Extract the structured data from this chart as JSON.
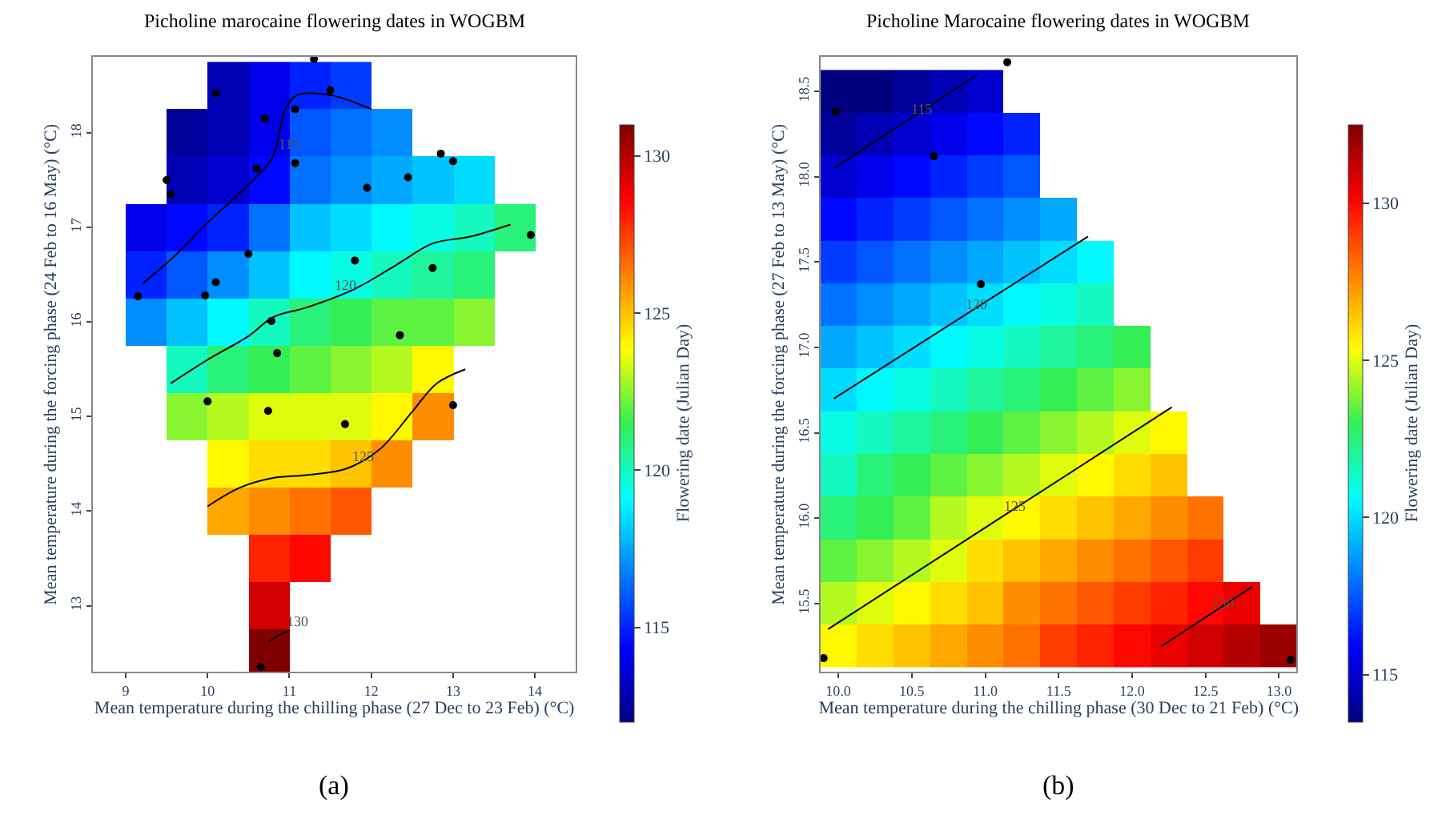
{
  "chart_data": [
    {
      "type": "heatmap",
      "title": "Picholine marocaine flowering dates in WOGBM",
      "xlabel": "Mean temperature during the chilling phase (27 Dec to 23 Feb) (°C)",
      "ylabel": "Mean temperature during the forcing phase (24 Feb to 16 May) (°C)",
      "clabel": "Flowering date (Julian Day)",
      "x": [
        9.25,
        9.75,
        10.25,
        10.75,
        11.25,
        11.75,
        12.25,
        12.75,
        13.25,
        13.75
      ],
      "y": [
        18.5,
        18.0,
        17.5,
        17.0,
        16.5,
        16.0,
        15.5,
        15.0,
        14.5,
        14.0,
        13.5,
        13.0,
        12.5
      ],
      "cells": [
        [
          null,
          null,
          113,
          114,
          115,
          115.5,
          null,
          null,
          null,
          null
        ],
        [
          null,
          112.5,
          113,
          114,
          116,
          116.5,
          117,
          null,
          null,
          null
        ],
        [
          null,
          113,
          113.5,
          114.5,
          116.5,
          117,
          117.5,
          118,
          118.5,
          null
        ],
        [
          114,
          114.5,
          115,
          116.5,
          118,
          118.5,
          119,
          119.5,
          120,
          121
        ],
        [
          115,
          116,
          117,
          118,
          119,
          119.5,
          120,
          120.5,
          121,
          null
        ],
        [
          117,
          118,
          119,
          120,
          121,
          121.5,
          122,
          122,
          122.5,
          null
        ],
        [
          null,
          120,
          121,
          121.5,
          122,
          122.5,
          123,
          124,
          null,
          null
        ],
        [
          null,
          122.5,
          123,
          123.5,
          123.5,
          123.5,
          124,
          126,
          null,
          null
        ],
        [
          null,
          null,
          124,
          124.5,
          124.5,
          125,
          126,
          null,
          null,
          null
        ],
        [
          null,
          null,
          125.5,
          126,
          126.5,
          127,
          null,
          null,
          null,
          null
        ],
        [
          null,
          null,
          null,
          128,
          128.5,
          null,
          null,
          null,
          null,
          null
        ],
        [
          null,
          null,
          null,
          129.5,
          null,
          null,
          null,
          null,
          null,
          null
        ],
        [
          null,
          null,
          null,
          131,
          null,
          null,
          null,
          null,
          null,
          null
        ]
      ],
      "clim": [
        112,
        131
      ],
      "cticks": [
        115,
        120,
        125,
        130
      ],
      "xlim": [
        8.6,
        14.5
      ],
      "xticks": [
        9,
        10,
        11,
        12,
        13,
        14
      ],
      "ylim": [
        12.3,
        18.8
      ],
      "yticks": [
        13,
        14,
        15,
        16,
        17,
        18
      ],
      "series": [
        {
          "type": "scatter",
          "color": "#000000",
          "marker": "circle",
          "x": [
            9.15,
            9.5,
            9.55,
            10.1,
            10.7,
            10.6,
            11.07,
            11.07,
            11.5,
            11.3,
            11.95,
            12.45,
            12.85,
            13.0,
            13.95,
            10.5,
            11.8,
            12.75,
            10.1,
            9.97,
            10.78,
            10.85,
            12.35,
            10.0,
            10.74,
            11.68,
            13.0,
            10.65
          ],
          "values": [
            16.27,
            17.5,
            17.35,
            18.42,
            18.15,
            17.62,
            18.25,
            17.68,
            18.45,
            18.78,
            17.42,
            17.53,
            17.78,
            17.7,
            16.92,
            16.72,
            16.65,
            16.57,
            16.42,
            16.28,
            16.01,
            15.67,
            15.86,
            15.16,
            15.06,
            14.92,
            15.12,
            12.35
          ]
        },
        {
          "type": "line",
          "name": "115",
          "color": "#000000",
          "x": [
            9.2,
            9.6,
            10.0,
            10.5,
            10.8,
            10.95,
            11.1,
            11.5,
            12.0
          ],
          "values": [
            16.4,
            16.7,
            17.05,
            17.45,
            17.75,
            18.25,
            18.4,
            18.4,
            18.25
          ]
        },
        {
          "type": "line",
          "name": "120",
          "color": "#000000",
          "x": [
            9.55,
            10.0,
            10.5,
            10.8,
            11.2,
            11.8,
            12.3,
            12.75,
            13.2,
            13.7
          ],
          "values": [
            15.35,
            15.6,
            15.85,
            16.05,
            16.15,
            16.35,
            16.6,
            16.83,
            16.9,
            17.03
          ]
        },
        {
          "type": "line",
          "name": "125",
          "color": "#000000",
          "x": [
            10.0,
            10.4,
            10.8,
            11.2,
            11.7,
            12.1,
            12.5,
            12.8,
            13.15
          ],
          "values": [
            14.05,
            14.25,
            14.35,
            14.38,
            14.45,
            14.65,
            15.05,
            15.35,
            15.5
          ]
        },
        {
          "type": "line",
          "name": "130",
          "color": "#000000",
          "x": [
            10.75,
            10.9,
            11.0
          ],
          "values": [
            12.62,
            12.7,
            12.73
          ]
        }
      ],
      "annotations": [
        "(a)"
      ]
    },
    {
      "type": "heatmap",
      "title": "Picholine Marocaine flowering dates in WOGBM",
      "xlabel": "Mean temperature during the chilling phase (30 Dec to 21 Feb) (°C)",
      "ylabel": "Mean temperature during the forcing phase (27 Feb to 13 May) (°C)",
      "clabel": "Flowering date (Julian Day)",
      "x": [
        10.0,
        10.25,
        10.5,
        10.75,
        11.0,
        11.25,
        11.5,
        11.75,
        12.0,
        12.25,
        12.5,
        12.75,
        13.0
      ],
      "y": [
        18.5,
        18.25,
        18.0,
        17.75,
        17.5,
        17.25,
        17.0,
        16.75,
        16.5,
        16.25,
        16.0,
        15.75,
        15.5,
        15.25
      ],
      "cells": [
        [
          113,
          113.5,
          114,
          114.5,
          115,
          null,
          null,
          null,
          null,
          null,
          null,
          null,
          null
        ],
        [
          114,
          114.5,
          115,
          115.5,
          116,
          116.5,
          null,
          null,
          null,
          null,
          null,
          null,
          null
        ],
        [
          115,
          115.5,
          116,
          116.5,
          117,
          117.5,
          null,
          null,
          null,
          null,
          null,
          null,
          null
        ],
        [
          116,
          116.5,
          117,
          117.5,
          118,
          118.5,
          119,
          null,
          null,
          null,
          null,
          null,
          null
        ],
        [
          117,
          117.5,
          118,
          118.5,
          119,
          119.5,
          120,
          120.5,
          null,
          null,
          null,
          null,
          null
        ],
        [
          118,
          118.5,
          119,
          119.5,
          120,
          120.5,
          121,
          121.5,
          null,
          null,
          null,
          null,
          null
        ],
        [
          119,
          119.5,
          120,
          120.5,
          121,
          121.5,
          122,
          122.5,
          123,
          null,
          null,
          null,
          null
        ],
        [
          120,
          120.5,
          121,
          121.5,
          122,
          122.5,
          123,
          123.5,
          124,
          null,
          null,
          null,
          null
        ],
        [
          121,
          121.5,
          122,
          122.5,
          123,
          123.5,
          124,
          124.5,
          125,
          125.5,
          null,
          null,
          null
        ],
        [
          121.5,
          122.5,
          123,
          123.5,
          124,
          124.5,
          125,
          125.5,
          126,
          126.5,
          null,
          null,
          null
        ],
        [
          122.5,
          123,
          123.5,
          124.5,
          125,
          125.5,
          126,
          126.5,
          127,
          127.5,
          128,
          null,
          null
        ],
        [
          123.5,
          124,
          124.5,
          125,
          126,
          126.5,
          127,
          127.5,
          128,
          128.5,
          129,
          null,
          null
        ],
        [
          124.5,
          125,
          125.5,
          126,
          126.5,
          127.5,
          128,
          128.5,
          129,
          129.5,
          130,
          130.5,
          null
        ],
        [
          125.5,
          126,
          126.5,
          127,
          127.5,
          128,
          129,
          129.5,
          130,
          130.5,
          131,
          131.5,
          132
        ]
      ],
      "clim": [
        113.5,
        132.5
      ],
      "cticks": [
        115,
        120,
        125,
        130
      ],
      "xlim": [
        9.88,
        13.12
      ],
      "xticks": [
        {
          "value": 10,
          "label": "10.0"
        },
        {
          "value": 10.5,
          "label": "10.5"
        },
        {
          "value": 11,
          "label": "11.0"
        },
        {
          "value": 11.5,
          "label": "11.5"
        },
        {
          "value": 12,
          "label": "12.0"
        },
        {
          "value": 12.5,
          "label": "12.5"
        },
        {
          "value": 13,
          "label": "13.0"
        }
      ],
      "ylim": [
        15.1,
        18.7
      ],
      "yticks": [
        {
          "value": 15.5,
          "label": "15.5"
        },
        {
          "value": 16,
          "label": "16.0"
        },
        {
          "value": 16.5,
          "label": "16.5"
        },
        {
          "value": 17,
          "label": "17.0"
        },
        {
          "value": 17.5,
          "label": "17.5"
        },
        {
          "value": 18,
          "label": "18.0"
        },
        {
          "value": 18.5,
          "label": "18.5"
        }
      ],
      "series": [
        {
          "type": "scatter",
          "color": "#000000",
          "marker": "circle",
          "x": [
            9.98,
            10.65,
            10.97,
            11.15,
            9.9,
            13.08
          ],
          "values": [
            18.38,
            18.12,
            17.37,
            18.67,
            15.18,
            15.17
          ]
        },
        {
          "type": "line",
          "name": "115",
          "color": "#000000",
          "x": [
            9.97,
            10.95
          ],
          "values": [
            18.05,
            18.6
          ]
        },
        {
          "type": "line",
          "name": "120",
          "color": "#000000",
          "x": [
            9.97,
            11.7
          ],
          "values": [
            16.7,
            17.65
          ]
        },
        {
          "type": "line",
          "name": "125",
          "color": "#000000",
          "x": [
            9.93,
            12.27
          ],
          "values": [
            15.35,
            16.65
          ]
        },
        {
          "type": "line",
          "name": "130",
          "color": "#000000",
          "x": [
            12.2,
            12.82
          ],
          "values": [
            15.25,
            15.6
          ]
        }
      ],
      "annotations": [
        "(b)"
      ]
    }
  ]
}
